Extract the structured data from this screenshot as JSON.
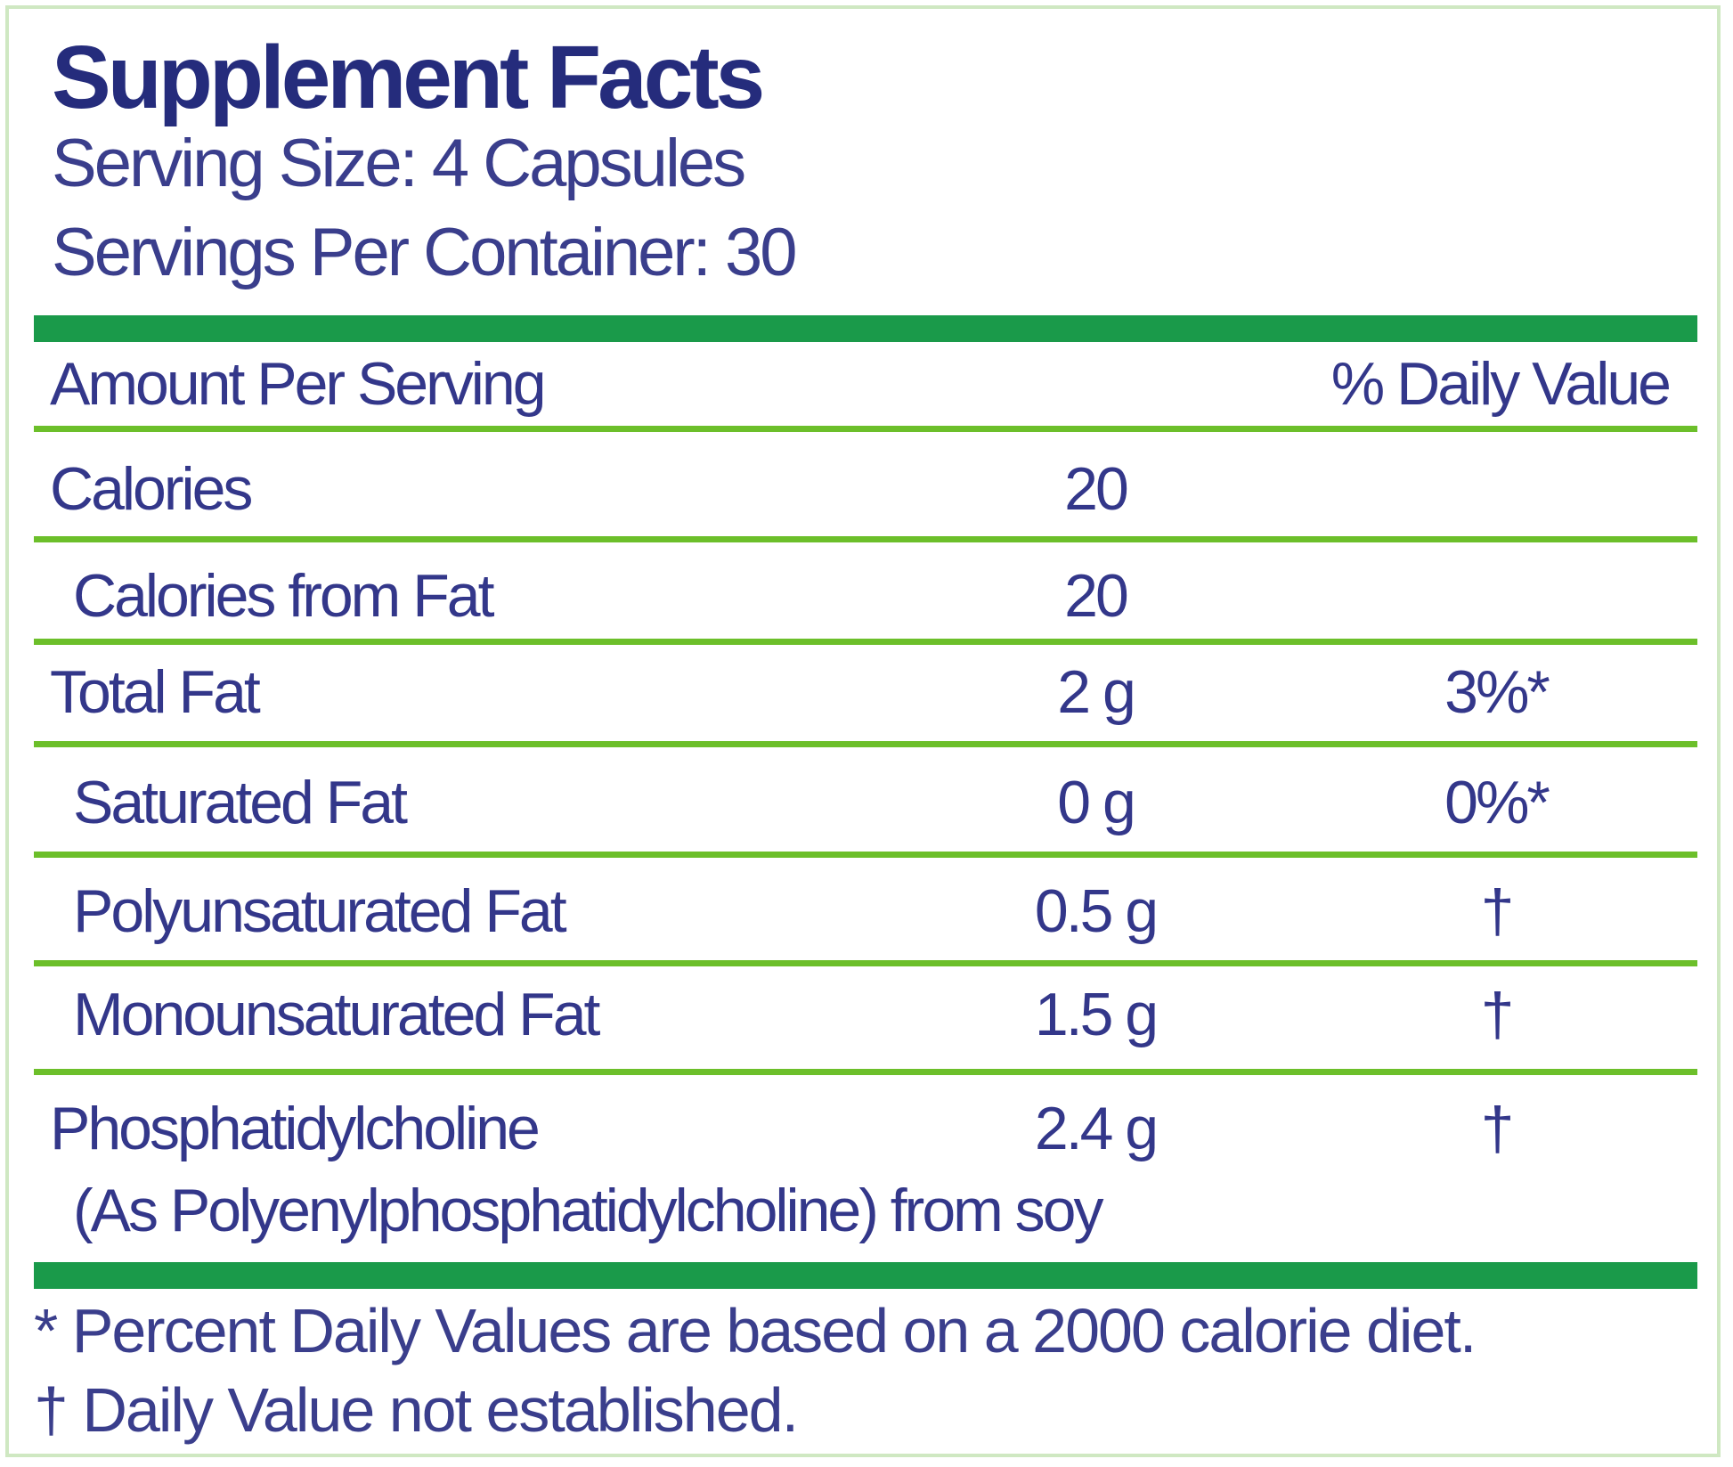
{
  "title": "Supplement Facts",
  "serving_size": "Serving Size: 4 Capsules",
  "servings_per_container": "Servings Per Container: 30",
  "header": {
    "amount_label": "Amount Per Serving",
    "dv_label": "% Daily Value"
  },
  "rows": [
    {
      "name": "Calories",
      "amount": "20",
      "dv": "",
      "indent": false
    },
    {
      "name": "Calories from Fat",
      "amount": "20",
      "dv": "",
      "indent": true
    },
    {
      "name": "Total Fat",
      "amount": "2 g",
      "dv": "3%*",
      "indent": false
    },
    {
      "name": "Saturated Fat",
      "amount": "0 g",
      "dv": "0%*",
      "indent": true
    },
    {
      "name": "Polyunsaturated Fat",
      "amount": "0.5 g",
      "dv": "†",
      "indent": true
    },
    {
      "name": "Monounsaturated Fat",
      "amount": "1.5 g",
      "dv": "†",
      "indent": true
    },
    {
      "name": "Phosphatidylcholine",
      "sub": "(As Polyenylphosphatidylcholine) from soy",
      "amount": "2.4 g",
      "dv": "†",
      "indent": false
    }
  ],
  "footnotes": [
    "* Percent Daily Values are based on a 2000 calorie diet.",
    "† Daily Value not established."
  ],
  "colors": {
    "text": "#33378a",
    "title": "#252c7c",
    "thick_rule": "#1a9a4a",
    "thin_rule": "#6cbf2a",
    "border": "#cfe8c2"
  }
}
